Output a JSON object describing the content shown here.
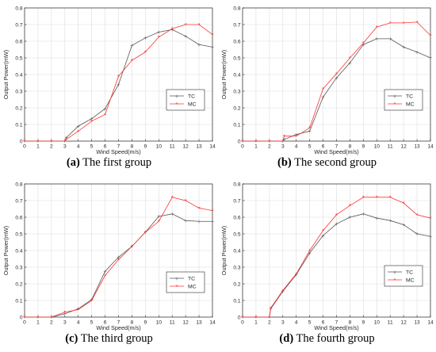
{
  "chart_data": [
    {
      "type": "line",
      "caption_letter": "(a)",
      "caption_text": " The first group",
      "xlabel": "Wind Speed(m/s)",
      "ylabel": "Output Power(mW)",
      "xlim": [
        0,
        14
      ],
      "ylim": [
        0,
        0.8
      ],
      "x_ticks": [
        0,
        1,
        2,
        3,
        4,
        5,
        6,
        7,
        8,
        9,
        10,
        11,
        12,
        13,
        14
      ],
      "y_ticks": [
        0,
        0.1,
        0.2,
        0.3,
        0.4,
        0.5,
        0.6,
        0.7,
        0.8
      ],
      "x_tick_labels": [
        "0",
        "1",
        "2",
        "3",
        "4",
        "5",
        "6",
        "7",
        "8",
        "9",
        "10",
        "11",
        "12",
        "13",
        "14"
      ],
      "y_tick_labels": [
        "0",
        "0.1",
        "0.2",
        "0.3",
        "0.4",
        "0.5",
        "0.6",
        "0.7",
        "0.8"
      ],
      "grid": true,
      "legend_position": "middle-right",
      "series": [
        {
          "name": "TC",
          "color": "#555555",
          "x": [
            0,
            1,
            2,
            3,
            3.1,
            4,
            5,
            6,
            7,
            8,
            9,
            10,
            11,
            12,
            13,
            14
          ],
          "y": [
            0,
            0,
            0,
            0,
            0.02,
            0.09,
            0.135,
            0.195,
            0.34,
            0.575,
            0.62,
            0.655,
            0.67,
            0.63,
            0.58,
            0.565
          ]
        },
        {
          "name": "MC",
          "color": "#ff3333",
          "x": [
            0,
            1,
            2,
            3,
            3.1,
            4,
            5,
            6,
            7,
            8,
            9,
            10,
            11,
            12,
            13,
            14
          ],
          "y": [
            0,
            0,
            0,
            0,
            0.01,
            0.06,
            0.12,
            0.16,
            0.39,
            0.485,
            0.535,
            0.625,
            0.675,
            0.7,
            0.7,
            0.64
          ]
        }
      ]
    },
    {
      "type": "line",
      "caption_letter": "(b)",
      "caption_text": " The second group",
      "xlabel": "Wind Speed(m/s)",
      "ylabel": "Output Power(mW)",
      "xlim": [
        0,
        14
      ],
      "ylim": [
        0,
        0.8
      ],
      "x_ticks": [
        0,
        1,
        2,
        3,
        4,
        5,
        6,
        7,
        8,
        9,
        10,
        11,
        12,
        13,
        14
      ],
      "y_ticks": [
        0,
        0.1,
        0.2,
        0.3,
        0.4,
        0.5,
        0.6,
        0.7,
        0.8
      ],
      "x_tick_labels": [
        "0",
        "1",
        "2",
        "3",
        "4",
        "5",
        "6",
        "7",
        "8",
        "9",
        "10",
        "11",
        "12",
        "13",
        "14"
      ],
      "y_tick_labels": [
        "0",
        "0.1",
        "0.2",
        "0.3",
        "0.4",
        "0.5",
        "0.6",
        "0.7",
        "0.8"
      ],
      "grid": true,
      "legend_position": "middle-right",
      "series": [
        {
          "name": "TC",
          "color": "#555555",
          "x": [
            0,
            1,
            2,
            3,
            3.1,
            4,
            5,
            6,
            7,
            8,
            9,
            10,
            11,
            12,
            13,
            14
          ],
          "y": [
            0,
            0,
            0,
            0,
            0.01,
            0.04,
            0.06,
            0.265,
            0.38,
            0.47,
            0.58,
            0.615,
            0.615,
            0.565,
            0.535,
            0.5
          ]
        },
        {
          "name": "MC",
          "color": "#ff3333",
          "x": [
            0,
            1,
            2,
            3,
            3.1,
            4,
            5,
            6,
            7,
            8,
            9,
            10,
            11,
            12,
            13,
            14
          ],
          "y": [
            0,
            0,
            0,
            0,
            0.03,
            0.03,
            0.08,
            0.315,
            0.405,
            0.5,
            0.59,
            0.685,
            0.71,
            0.71,
            0.715,
            0.635
          ]
        }
      ]
    },
    {
      "type": "line",
      "caption_letter": "(c)",
      "caption_text": " The third group",
      "xlabel": "Wind Speed(m/s)",
      "ylabel": "Output Power(mW)",
      "xlim": [
        0,
        14
      ],
      "ylim": [
        0,
        0.8
      ],
      "x_ticks": [
        0,
        1,
        2,
        3,
        4,
        5,
        6,
        7,
        8,
        9,
        10,
        11,
        12,
        13,
        14
      ],
      "y_ticks": [
        0,
        0.1,
        0.2,
        0.3,
        0.4,
        0.5,
        0.6,
        0.7,
        0.8
      ],
      "x_tick_labels": [
        "0",
        "1",
        "2",
        "3",
        "4",
        "5",
        "6",
        "7",
        "8",
        "9",
        "10",
        "11",
        "12",
        "13",
        "14"
      ],
      "y_tick_labels": [
        "0",
        "0.1",
        "0.2",
        "0.3",
        "0.4",
        "0.5",
        "0.6",
        "0.7",
        "0.8"
      ],
      "grid": true,
      "legend_position": "bottom-right",
      "series": [
        {
          "name": "TC",
          "color": "#555555",
          "x": [
            0,
            1,
            2,
            3,
            4,
            5,
            6,
            7,
            8,
            9,
            10,
            11,
            12,
            13,
            14
          ],
          "y": [
            0,
            0,
            0,
            0.02,
            0.05,
            0.105,
            0.275,
            0.36,
            0.425,
            0.51,
            0.605,
            0.62,
            0.58,
            0.575,
            0.575
          ]
        },
        {
          "name": "MC",
          "color": "#ff3333",
          "x": [
            0,
            1,
            2,
            3,
            4,
            5,
            6,
            7,
            8,
            9,
            10,
            11,
            12,
            13,
            14
          ],
          "y": [
            0,
            0,
            0,
            0.03,
            0.045,
            0.1,
            0.25,
            0.345,
            0.425,
            0.51,
            0.575,
            0.72,
            0.7,
            0.655,
            0.64
          ]
        }
      ]
    },
    {
      "type": "line",
      "caption_letter": "(d)",
      "caption_text": " The fourth group",
      "xlabel": "Wind Speed(m/s)",
      "ylabel": "Output Power(mW)",
      "xlim": [
        0,
        14
      ],
      "ylim": [
        0,
        0.8
      ],
      "x_ticks": [
        0,
        1,
        2,
        3,
        4,
        5,
        6,
        7,
        8,
        9,
        10,
        11,
        12,
        13,
        14
      ],
      "y_ticks": [
        0,
        0.1,
        0.2,
        0.3,
        0.4,
        0.5,
        0.6,
        0.7,
        0.8
      ],
      "x_tick_labels": [
        "0",
        "1",
        "2",
        "3",
        "4",
        "5",
        "6",
        "7",
        "8",
        "9",
        "10",
        "11",
        "12",
        "13",
        "14"
      ],
      "y_tick_labels": [
        "0",
        "0.1",
        "0.2",
        "0.3",
        "0.4",
        "0.5",
        "0.6",
        "0.7",
        "0.8"
      ],
      "grid": true,
      "legend_position": "middle-right",
      "series": [
        {
          "name": "TC",
          "color": "#555555",
          "x": [
            0,
            1,
            2,
            2.1,
            3,
            4,
            5,
            6,
            7,
            8,
            9,
            10,
            11,
            12,
            13,
            14
          ],
          "y": [
            0,
            0,
            0,
            0.05,
            0.155,
            0.255,
            0.385,
            0.49,
            0.56,
            0.6,
            0.62,
            0.595,
            0.58,
            0.555,
            0.5,
            0.485
          ]
        },
        {
          "name": "MC",
          "color": "#ff3333",
          "x": [
            0,
            1,
            2,
            2.1,
            3,
            4,
            5,
            6,
            7,
            8,
            9,
            10,
            11,
            12,
            13,
            14
          ],
          "y": [
            0,
            0,
            0,
            0.055,
            0.16,
            0.26,
            0.4,
            0.52,
            0.615,
            0.67,
            0.72,
            0.72,
            0.72,
            0.685,
            0.615,
            0.595
          ]
        }
      ]
    }
  ]
}
